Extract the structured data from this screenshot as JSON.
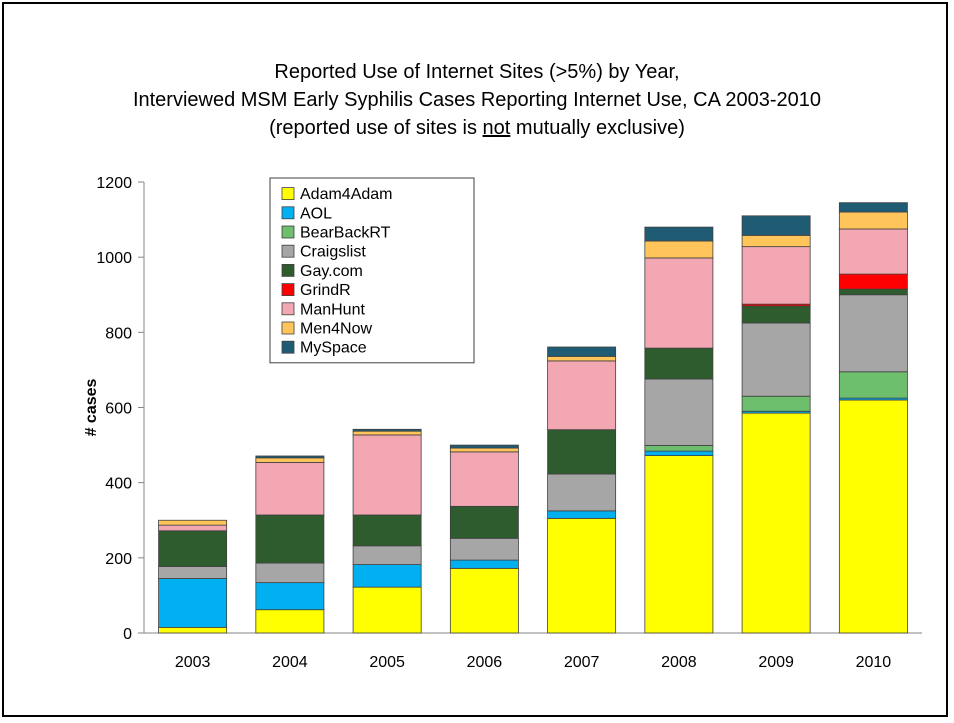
{
  "title": {
    "line1": "Reported Use of Internet Sites (>5%) by Year,",
    "line2": "Interviewed MSM Early Syphilis Cases Reporting Internet Use, CA 2003-2010",
    "line3_before": "(reported use of sites is ",
    "line3_underlined": "not",
    "line3_after": " mutually exclusive)"
  },
  "chart_data": {
    "type": "bar",
    "stacked": true,
    "ylabel": "# cases",
    "xlabel": "",
    "ylim": [
      0,
      1200
    ],
    "yticks": [
      0,
      200,
      400,
      600,
      800,
      1000,
      1200
    ],
    "grid": false,
    "legend_position": "top-left",
    "categories": [
      "2003",
      "2004",
      "2005",
      "2006",
      "2007",
      "2008",
      "2009",
      "2010"
    ],
    "series": [
      {
        "name": "Adam4Adam",
        "color": "#FFFF00",
        "values": [
          15,
          62,
          122,
          172,
          305,
          472,
          585,
          620
        ]
      },
      {
        "name": "AOL",
        "color": "#00B0F0",
        "values": [
          130,
          72,
          60,
          22,
          20,
          12,
          5,
          5
        ]
      },
      {
        "name": "BearBackRT",
        "color": "#6DBE6D",
        "values": [
          0,
          0,
          0,
          0,
          0,
          15,
          40,
          70
        ]
      },
      {
        "name": "Craigslist",
        "color": "#A6A6A6",
        "values": [
          32,
          52,
          50,
          58,
          98,
          177,
          195,
          205
        ]
      },
      {
        "name": "Gay.com",
        "color": "#2E5C2E",
        "values": [
          95,
          128,
          82,
          85,
          118,
          82,
          45,
          15
        ]
      },
      {
        "name": "GrindR",
        "color": "#FF0000",
        "values": [
          0,
          0,
          0,
          0,
          0,
          0,
          5,
          40
        ]
      },
      {
        "name": "ManHunt",
        "color": "#F2A7B3",
        "values": [
          15,
          140,
          213,
          145,
          183,
          240,
          153,
          120
        ]
      },
      {
        "name": "Men4Now",
        "color": "#FFC55A",
        "values": [
          13,
          12,
          10,
          10,
          12,
          45,
          30,
          45
        ]
      },
      {
        "name": "MySpace",
        "color": "#1F5C73",
        "values": [
          0,
          5,
          5,
          8,
          25,
          37,
          52,
          25
        ]
      }
    ]
  }
}
